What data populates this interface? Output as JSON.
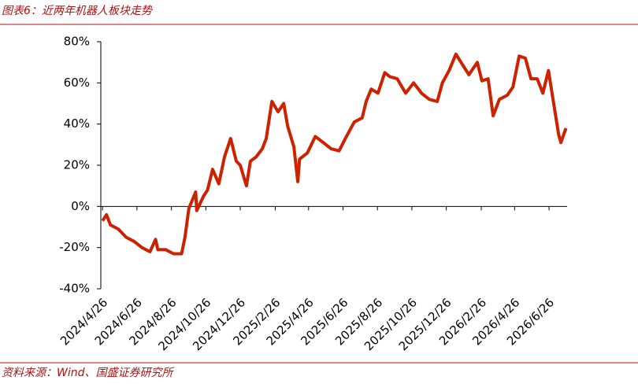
{
  "chart_data": {
    "type": "line",
    "title": "图表6：近两年机器人板块走势",
    "source": "资料来源：Wind、国盛证券研究所",
    "color": "#cc2200",
    "x": [
      "2024/4/26",
      "2024/5/3",
      "2024/5/10",
      "2024/5/24",
      "2024/6/7",
      "2024/6/21",
      "2024/7/5",
      "2024/7/19",
      "2024/7/29",
      "2024/8/2",
      "2024/8/16",
      "2024/8/30",
      "2024/9/13",
      "2024/9/19",
      "2024/9/26",
      "2024/10/8",
      "2024/10/10",
      "2024/10/22",
      "2024/10/29",
      "2024/11/7",
      "2024/11/18",
      "2024/11/28",
      "2024/12/9",
      "2024/12/19",
      "2024/12/26",
      "2025/1/6",
      "2025/1/13",
      "2025/1/23",
      "2025/2/3",
      "2025/2/10",
      "2025/2/20",
      "2025/3/3",
      "2025/3/13",
      "2025/3/20",
      "2025/3/31",
      "2025/4/7",
      "2025/4/10",
      "2025/4/24",
      "2025/5/8",
      "2025/5/22",
      "2025/6/5",
      "2025/6/19",
      "2025/7/2",
      "2025/7/16",
      "2025/7/30",
      "2025/8/6",
      "2025/8/15",
      "2025/8/27",
      "2025/9/8",
      "2025/9/17",
      "2025/9/30",
      "2025/10/15",
      "2025/10/29",
      "2025/11/12",
      "2025/11/26",
      "2025/12/10",
      "2025/12/19",
      "2025/12/31",
      "2026/1/12",
      "2026/1/21",
      "2026/2/4",
      "2026/2/19",
      "2026/2/27",
      "2026/3/10",
      "2026/3/19",
      "2026/3/30",
      "2026/4/13",
      "2026/4/23",
      "2026/5/4",
      "2026/5/15",
      "2026/5/25",
      "2026/6/5",
      "2026/6/15",
      "2026/6/25",
      "2026/7/6",
      "2026/7/13",
      "2026/7/17",
      "2026/7/22",
      "2026/7/26"
    ],
    "values": [
      -7,
      -4,
      -9,
      -11,
      -15,
      -17,
      -20,
      -22,
      -16,
      -21,
      -21,
      -23,
      -23,
      -15,
      -1,
      7,
      -2,
      5,
      8,
      18,
      11,
      24,
      33,
      22,
      20,
      10,
      22,
      24,
      28,
      33,
      51,
      46,
      50,
      39,
      29,
      12,
      23,
      26,
      34,
      31,
      28,
      27,
      34,
      41,
      43,
      51,
      57,
      55,
      65,
      63,
      62,
      55,
      60,
      55,
      52,
      51,
      60,
      66,
      74,
      70,
      64,
      70,
      61,
      62,
      44,
      52,
      54,
      58,
      73,
      72,
      62,
      62,
      55,
      66,
      47,
      35,
      31,
      35,
      38
    ],
    "xlim": [
      "2024/4/23",
      "2026/7/28"
    ],
    "xticks": [
      "2024/4/26",
      "2024/6/26",
      "2024/8/26",
      "2024/10/26",
      "2024/12/26",
      "2025/2/26",
      "2025/4/26",
      "2025/6/26",
      "2025/8/26",
      "2025/10/26",
      "2025/12/26",
      "2026/2/26",
      "2026/4/26",
      "2026/6/26"
    ],
    "ylim": [
      -40,
      80
    ],
    "yticks": [
      {
        "value": -40,
        "label": "-40%"
      },
      {
        "value": -20,
        "label": "-20%"
      },
      {
        "value": 0,
        "label": "0%"
      },
      {
        "value": 20,
        "label": "20%"
      },
      {
        "value": 40,
        "label": "40%"
      },
      {
        "value": 60,
        "label": "60%"
      },
      {
        "value": 80,
        "label": "80%"
      }
    ]
  }
}
